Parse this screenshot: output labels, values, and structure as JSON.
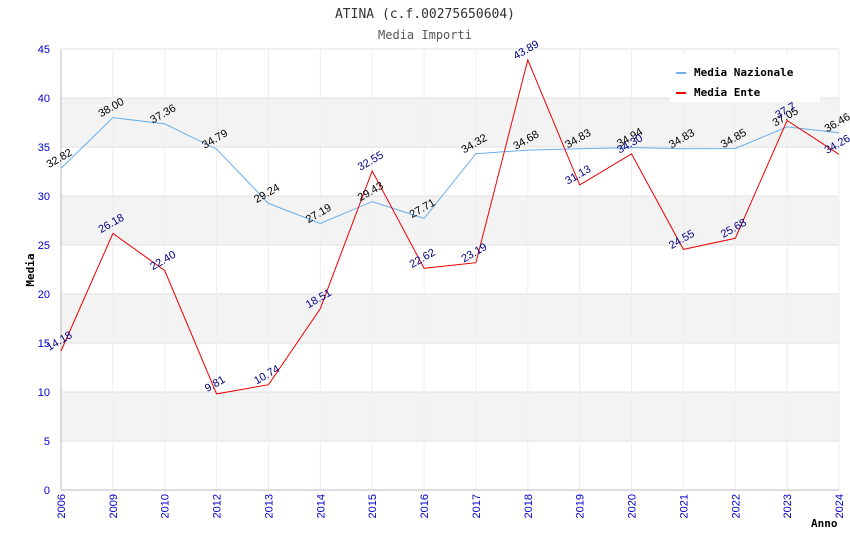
{
  "chart_data": {
    "type": "line",
    "title": "ATINA (c.f.00275650604)",
    "subtitle": "Media Importi",
    "xlabel": "Anno",
    "ylabel": "Media",
    "ylim": [
      0,
      45
    ],
    "yticks": [
      "0",
      "5",
      "10",
      "15",
      "20",
      "25",
      "30",
      "35",
      "40",
      "45"
    ],
    "categories": [
      "2006",
      "2009",
      "2010",
      "2012",
      "2013",
      "2014",
      "2015",
      "2016",
      "2017",
      "2018",
      "2019",
      "2020",
      "2021",
      "2022",
      "2023",
      "2024"
    ],
    "grid": true,
    "legend_position": "top-right",
    "series": [
      {
        "name": "Media Nazionale",
        "color": "#6aaeea",
        "label_color": "#000000",
        "values": [
          32.82,
          38.0,
          37.36,
          34.79,
          29.24,
          27.19,
          29.43,
          27.71,
          34.32,
          34.68,
          34.83,
          34.94,
          34.83,
          34.85,
          37.05,
          36.46
        ],
        "labels": [
          "32.82",
          "38.00",
          "37.36",
          "34.79",
          "29.24",
          "27.19",
          "29.43",
          "27.71",
          "34.32",
          "34.68",
          "34.83",
          "34.94",
          "34.83",
          "34.85",
          "37.05",
          "36.46"
        ]
      },
      {
        "name": "Media Ente",
        "color": "#ee0000",
        "label_color": "#000080",
        "values": [
          14.18,
          26.18,
          22.4,
          9.81,
          10.74,
          18.51,
          32.55,
          22.62,
          23.19,
          43.89,
          31.13,
          34.3,
          24.55,
          25.68,
          37.7,
          34.26
        ],
        "labels": [
          "14.18",
          "26.18",
          "22.40",
          "9.81",
          "10.74",
          "18.51",
          "32.55",
          "22.62",
          "23.19",
          "43.89",
          "31.13",
          "34.30",
          "24.55",
          "25.68",
          "37.7",
          "34.26"
        ]
      }
    ]
  }
}
